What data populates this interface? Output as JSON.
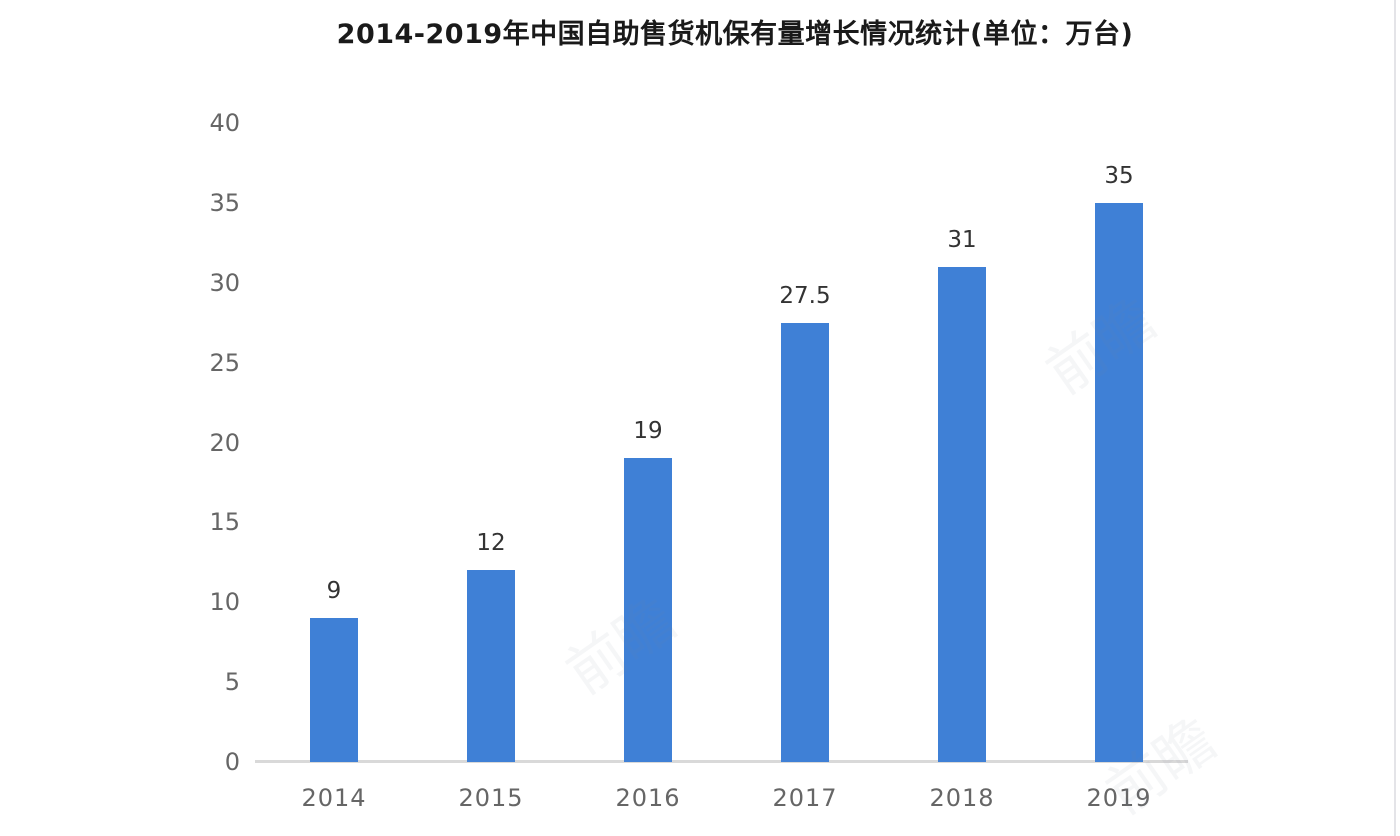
{
  "title": "2014-2019年中国自助售货机保有量增长情况统计(单位：万台)",
  "chart_data": {
    "type": "bar",
    "title": "2014-2019年中国自助售货机保有量增长情况统计(单位：万台)",
    "categories": [
      "2014",
      "2015",
      "2016",
      "2017",
      "2018",
      "2019"
    ],
    "values": [
      9,
      12,
      19,
      27.5,
      31,
      35
    ],
    "value_labels": [
      "9",
      "12",
      "19",
      "27.5",
      "31",
      "35"
    ],
    "xlabel": "",
    "ylabel": "",
    "unit": "万台",
    "ylim": [
      0,
      40
    ],
    "yticks": [
      0,
      5,
      10,
      15,
      20,
      25,
      30,
      35,
      40
    ],
    "grid": false,
    "legend_position": "none",
    "colors": {
      "bar": "#3F80D6",
      "title_text": "#1a1a1a",
      "axis_text": "#666666",
      "value_label_text": "#333333",
      "axis_line": "#d9d9d9"
    }
  },
  "watermark": {
    "text": "前瞻"
  }
}
